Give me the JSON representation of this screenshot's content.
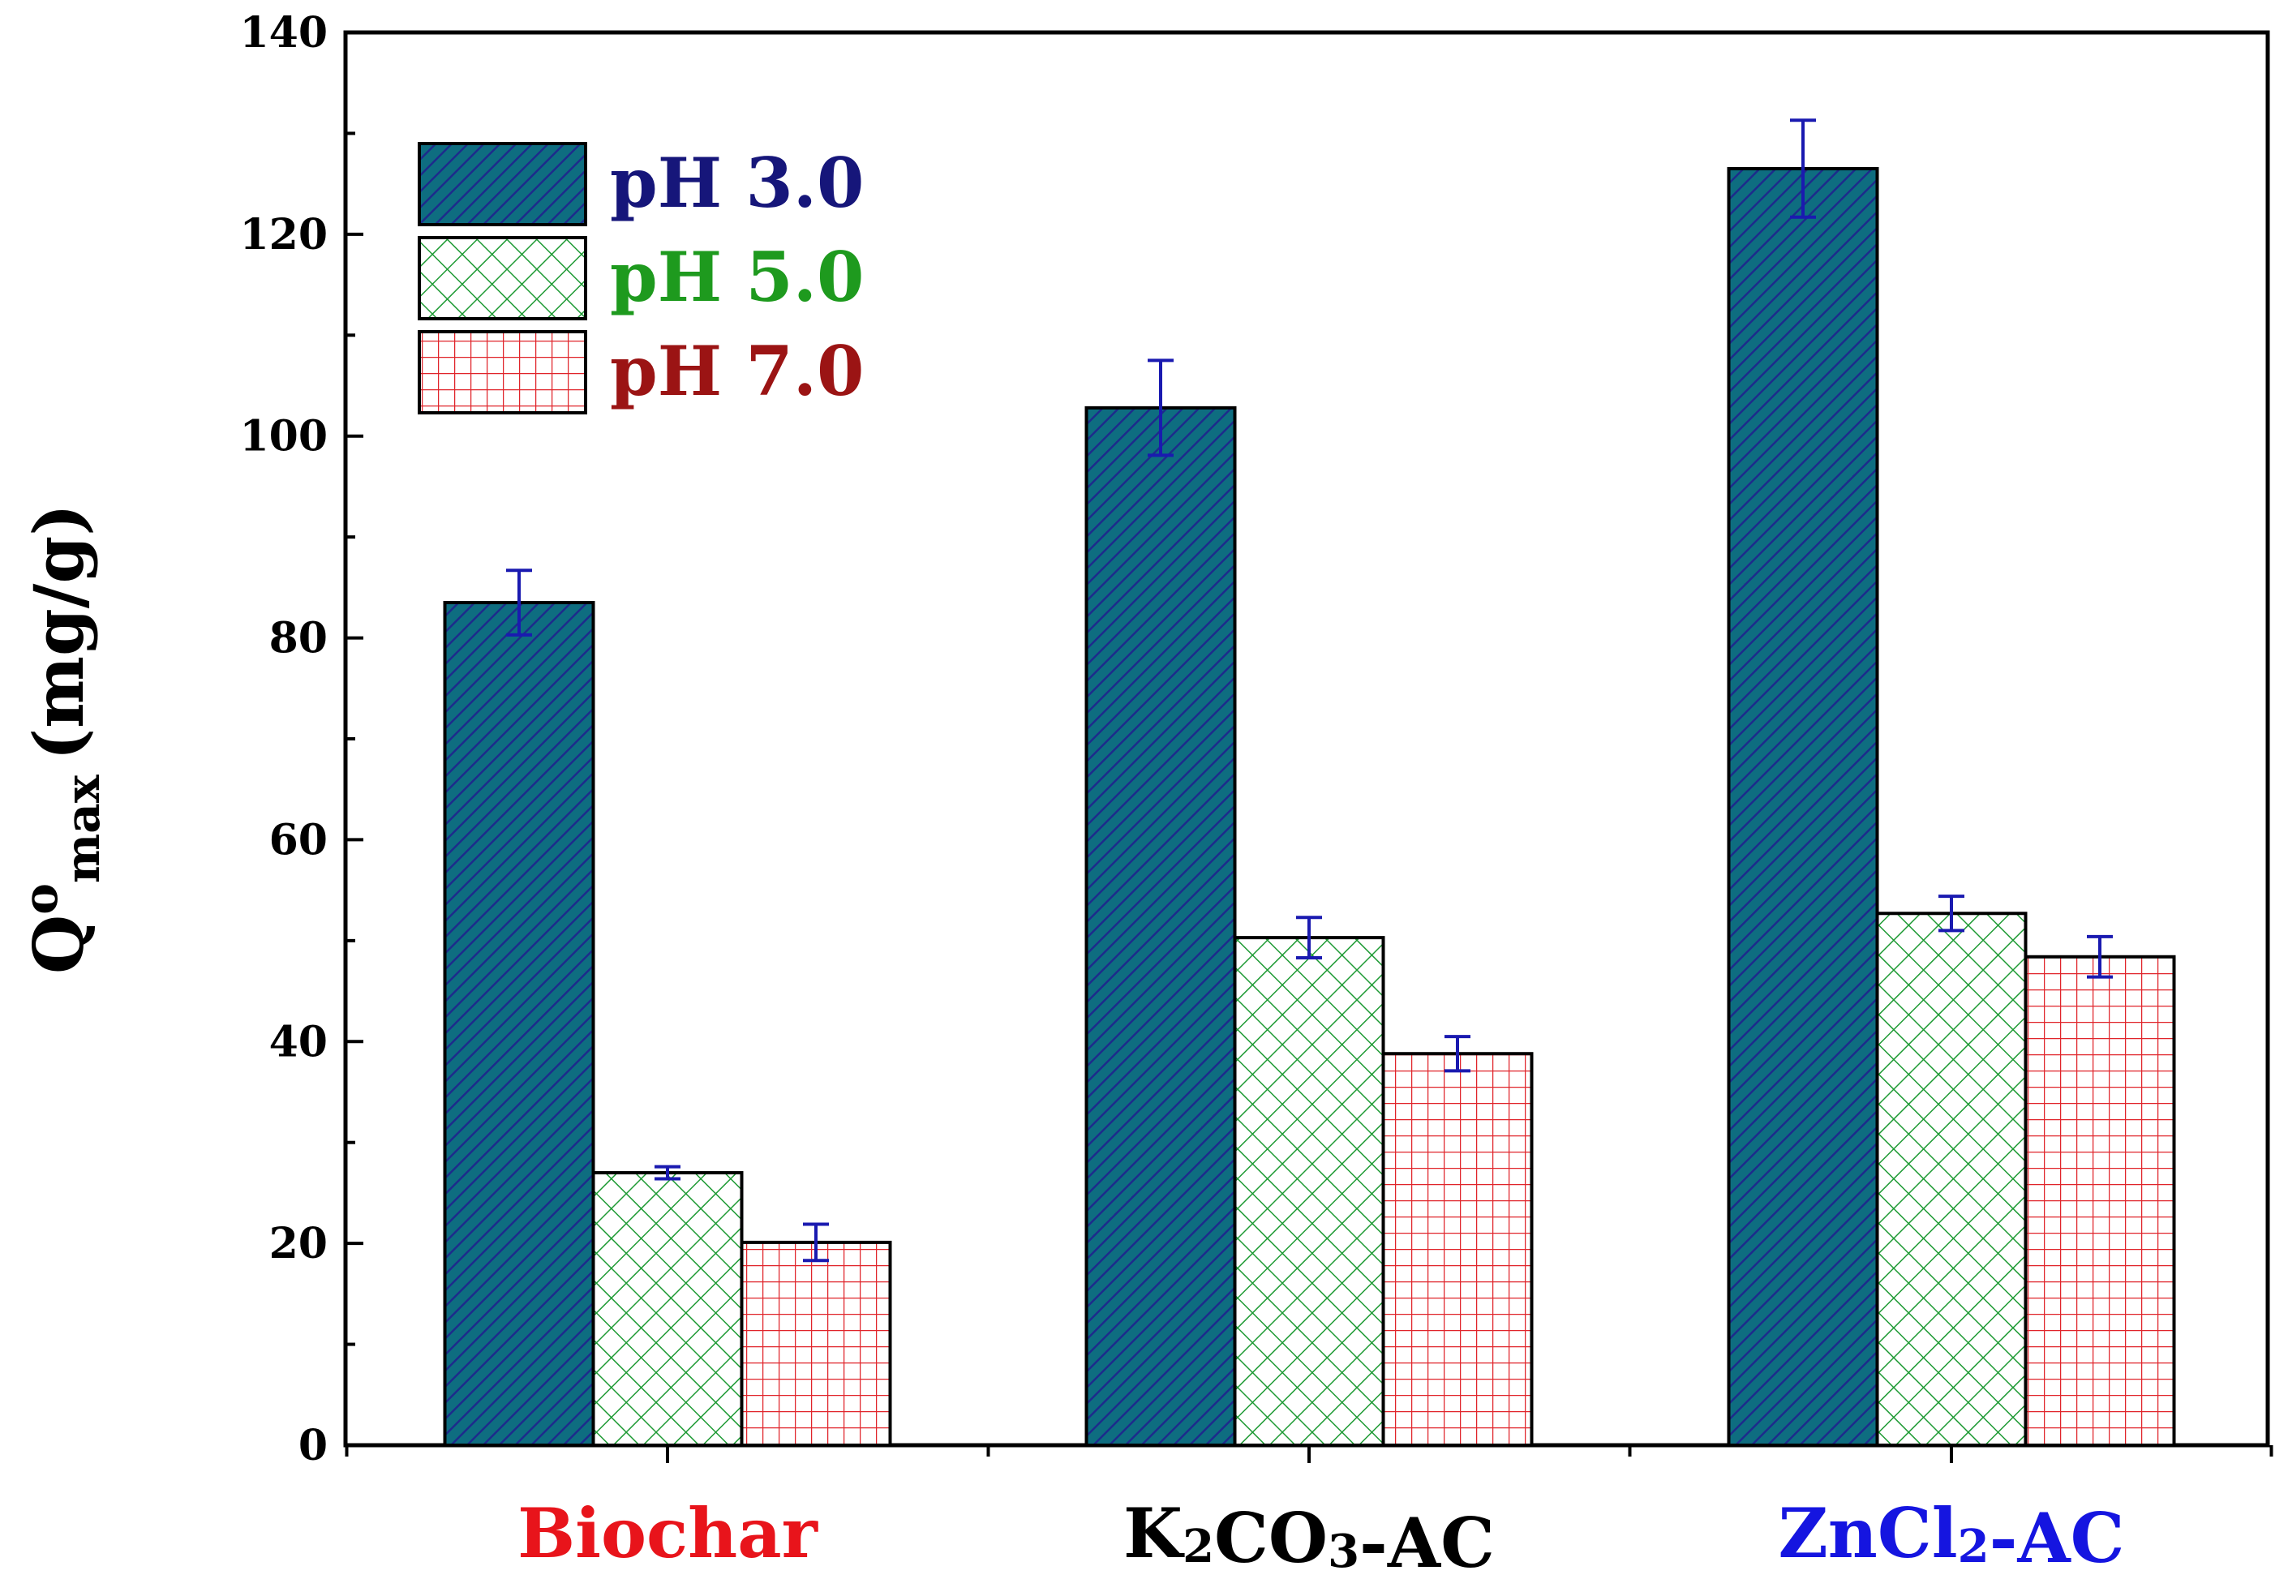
{
  "chart_data": {
    "type": "bar",
    "title": "",
    "xlabel": "",
    "ylabel": {
      "main": "Q",
      "superscript": "o",
      "subscript": "max",
      "unit": "(mg/g)"
    },
    "ylim": [
      0,
      140
    ],
    "y_ticks": [
      0,
      20,
      40,
      60,
      80,
      100,
      120,
      140
    ],
    "y_tick_labels": [
      "0",
      "20",
      "40",
      "60",
      "80",
      "100",
      "120",
      "140"
    ],
    "categories": [
      {
        "parts": [
          {
            "text": "Biochar"
          }
        ],
        "color": "#e8141b"
      },
      {
        "parts": [
          {
            "text": "K"
          },
          {
            "text": "2",
            "sub": true
          },
          {
            "text": "CO"
          },
          {
            "text": "3",
            "sub": true
          },
          {
            "text": "-AC"
          }
        ],
        "color": "#000000"
      },
      {
        "parts": [
          {
            "text": "ZnCl"
          },
          {
            "text": "2",
            "sub": true
          },
          {
            "text": "-AC"
          }
        ],
        "color": "#1515e0"
      }
    ],
    "series": [
      {
        "name": "pH 3.0",
        "values": [
          83.5,
          102.8,
          126.5
        ],
        "errors": [
          3.2,
          4.7,
          4.8
        ],
        "pattern": "diagonal",
        "fill": "#0e6d80",
        "line": "#1d2b8c",
        "label_color": "#16167a"
      },
      {
        "name": "pH 5.0",
        "values": [
          27.0,
          50.3,
          52.7
        ],
        "errors": [
          0.6,
          2.0,
          1.7
        ],
        "pattern": "crosshatch",
        "fill": "#ffffff",
        "line": "#1e9a34",
        "label_color": "#1e9a1e"
      },
      {
        "name": "pH 7.0",
        "values": [
          20.1,
          38.8,
          48.4
        ],
        "errors": [
          1.8,
          1.7,
          2.0
        ],
        "pattern": "grid",
        "fill": "#ffffff",
        "line": "#e0242a",
        "label_color": "#9b1414"
      }
    ],
    "error_bar_color": "#1a1ab0",
    "legend_position": "top-left",
    "grid": false
  }
}
